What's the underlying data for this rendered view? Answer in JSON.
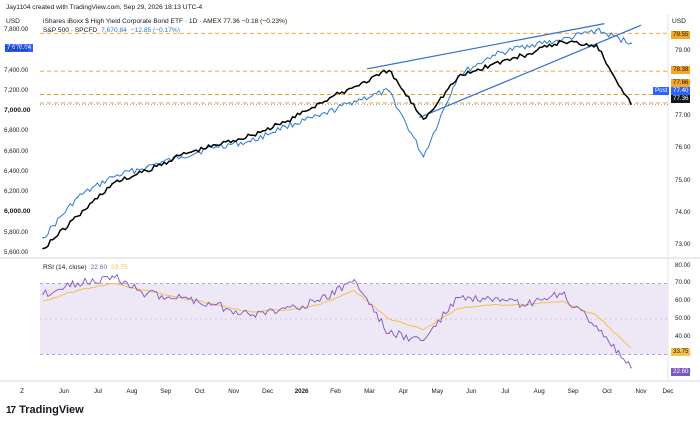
{
  "header": {
    "author_line": "Jay1104 created with TradingView.com, Sep 29, 2026 18:13 UTC-4",
    "left_currency": "USD",
    "right_currency": "USD",
    "series1_line": "iShares iBoxx $ High Yield Corporate Bond ETF · 1D · AMEX  77.36  −0.18 (−0.23%)",
    "series2_name": "S&P 500 · SPCFD",
    "series2_value": "7,670.84",
    "series2_change": "−12.85 (−0.17%)",
    "left_badge": "7,670.84"
  },
  "rsi_header": {
    "label": "RSI (14, close)",
    "value1": "22.60",
    "value2": "33.75"
  },
  "left_axis_ticks": [
    "7,800.00",
    "7,600.00",
    "7,400.00",
    "7,200.00",
    "7,000.00",
    "6,800.00",
    "6,600.00",
    "6,400.00",
    "6,200.00",
    "6,000.00",
    "5,800.00",
    "5,600.00"
  ],
  "right_axis_ticks": [
    "79.00",
    "78.00",
    "77.00",
    "76.00",
    "75.00",
    "74.00",
    "73.00"
  ],
  "right_badges": {
    "b1": "79.55",
    "b2": "78.38",
    "b3": "77.66",
    "post_label": "Post",
    "post_value": "77.40",
    "last": "77.36"
  },
  "rsi_axis_ticks": [
    "80.00",
    "70.00",
    "60.00",
    "50.00",
    "40.00",
    "30.00",
    "20.00"
  ],
  "rsi_badges": {
    "b1": "33.75",
    "b2": "22.60"
  },
  "x_axis_labels": [
    "Z",
    "Jun",
    "Jul",
    "Aug",
    "Sep",
    "Oct",
    "Nov",
    "Dec",
    "2026",
    "Feb",
    "Mar",
    "Apr",
    "May",
    "Jun",
    "Jul",
    "Aug",
    "Sep",
    "Oct",
    "Nov",
    "Dec"
  ],
  "brand": {
    "mark": "17",
    "name": "TradingView"
  },
  "colors": {
    "hyg": "#000000",
    "spx": "#2a7ad5",
    "rsi": "#7e57c2",
    "rsi_ma": "#f5c04a",
    "dashed": "#f29a1a",
    "badge_blue": "#2962ff",
    "badge_orange": "#f6a623",
    "rsi_band": "#ede7f6",
    "trendline": "#2f6fd6"
  },
  "chart_data": [
    {
      "type": "line",
      "title": "iShares iBoxx $ High Yield Corporate Bond ETF",
      "x": [
        "May",
        "Jun",
        "Jul",
        "Aug",
        "Sep",
        "Oct",
        "Nov",
        "Dec",
        "2026",
        "Feb",
        "Mar",
        "Apr",
        "May",
        "Jun",
        "Jul",
        "Aug",
        "Sep",
        "Sep 29"
      ],
      "series": [
        {
          "name": "iShares iBoxx $ High Yield Corporate Bond ETF",
          "axis": "right",
          "values": [
            72.9,
            73.9,
            74.9,
            75.3,
            75.8,
            76.1,
            76.4,
            76.8,
            77.4,
            77.9,
            78.4,
            76.9,
            78.2,
            78.6,
            78.9,
            79.3,
            79.2,
            77.36
          ]
        },
        {
          "name": "S&P 500",
          "axis": "left",
          "values": [
            5750,
            6150,
            6350,
            6450,
            6550,
            6650,
            6700,
            6850,
            6950,
            7100,
            7200,
            6550,
            7350,
            7550,
            7650,
            7700,
            7800,
            7670.84
          ]
        }
      ],
      "right_ylim": [
        72.7,
        79.9
      ],
      "left_ylim": [
        5580,
        7880
      ],
      "levels_dashed": [
        79.55,
        78.38,
        77.66,
        77.4
      ],
      "trendlines": "rising wedge"
    },
    {
      "type": "line",
      "title": "RSI (14, close)",
      "x": [
        "May",
        "Jun",
        "Jul",
        "Aug",
        "Sep",
        "Oct",
        "Nov",
        "Dec",
        "2026",
        "Feb",
        "Mar",
        "Apr",
        "May",
        "Jun",
        "Jul",
        "Aug",
        "Sep",
        "Sep 29"
      ],
      "series": [
        {
          "name": "RSI",
          "values": [
            64,
            70,
            74,
            64,
            62,
            58,
            52,
            56,
            60,
            72,
            42,
            38,
            62,
            60,
            58,
            64,
            46,
            22.6
          ]
        },
        {
          "name": "RSI MA",
          "values": [
            60,
            66,
            70,
            66,
            62,
            58,
            54,
            55,
            58,
            66,
            50,
            44,
            56,
            58,
            58,
            60,
            52,
            33.75
          ]
        }
      ],
      "ylim": [
        18,
        82
      ],
      "bands": [
        30,
        70
      ],
      "midline": 50
    }
  ]
}
